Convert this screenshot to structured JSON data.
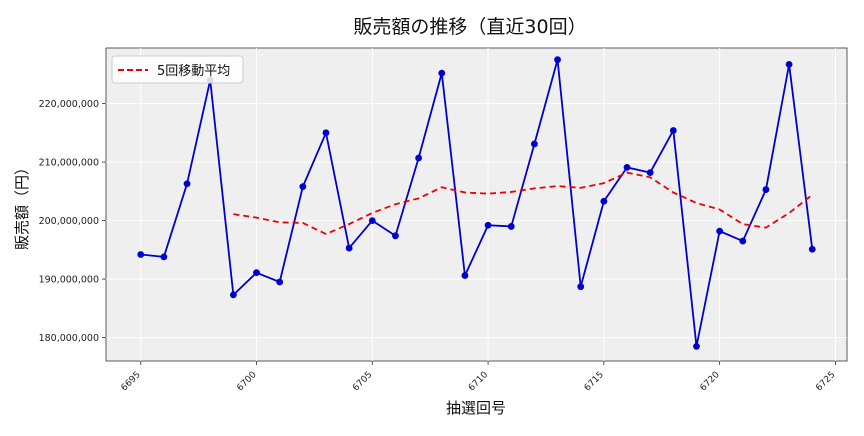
{
  "chart_data": {
    "type": "line",
    "title": "販売額の推移（直近30回）",
    "xlabel": "抽選回号",
    "ylabel": "販売額（円）",
    "x": [
      6695,
      6696,
      6697,
      6698,
      6699,
      6700,
      6701,
      6702,
      6703,
      6704,
      6705,
      6706,
      6707,
      6708,
      6709,
      6710,
      6711,
      6712,
      6713,
      6714,
      6715,
      6716,
      6717,
      6718,
      6719,
      6720,
      6721,
      6722,
      6723,
      6724
    ],
    "xlim": [
      6693.5,
      6725.5
    ],
    "ylim": [
      176000000,
      229500000
    ],
    "xticks": [
      6695,
      6700,
      6705,
      6710,
      6715,
      6720,
      6725
    ],
    "xtick_labels": [
      "6695",
      "6700",
      "6705",
      "6710",
      "6715",
      "6720",
      "6725"
    ],
    "yticks": [
      180000000,
      190000000,
      200000000,
      210000000,
      220000000
    ],
    "ytick_labels": [
      "180,000,000",
      "190,000,000",
      "200,000,000",
      "210,000,000",
      "220,000,000"
    ],
    "grid": true,
    "legend_position": "top-left",
    "series": [
      {
        "name": "",
        "color": "#0000cc",
        "style": "solid-line-with-markers",
        "values": [
          194200000,
          193800000,
          206300000,
          224000000,
          187300000,
          191100000,
          189500000,
          205800000,
          215000000,
          195300000,
          200000000,
          197400000,
          210700000,
          225200000,
          190600000,
          199200000,
          199000000,
          213100000,
          227500000,
          188700000,
          203300000,
          209100000,
          208200000,
          215400000,
          178500000,
          198200000,
          196500000,
          205300000,
          226700000,
          195100000
        ]
      },
      {
        "name": "5回移動平均",
        "color": "#ee0000",
        "style": "dashed",
        "values": [
          null,
          null,
          null,
          null,
          201100000,
          200500000,
          199700000,
          199600000,
          197700000,
          199400000,
          201300000,
          202800000,
          203800000,
          205700000,
          204800000,
          204600000,
          204900000,
          205500000,
          205900000,
          205600000,
          206400000,
          208200000,
          207400000,
          204800000,
          203000000,
          201900000,
          199400000,
          198800000,
          201300000,
          204400000
        ]
      }
    ]
  }
}
